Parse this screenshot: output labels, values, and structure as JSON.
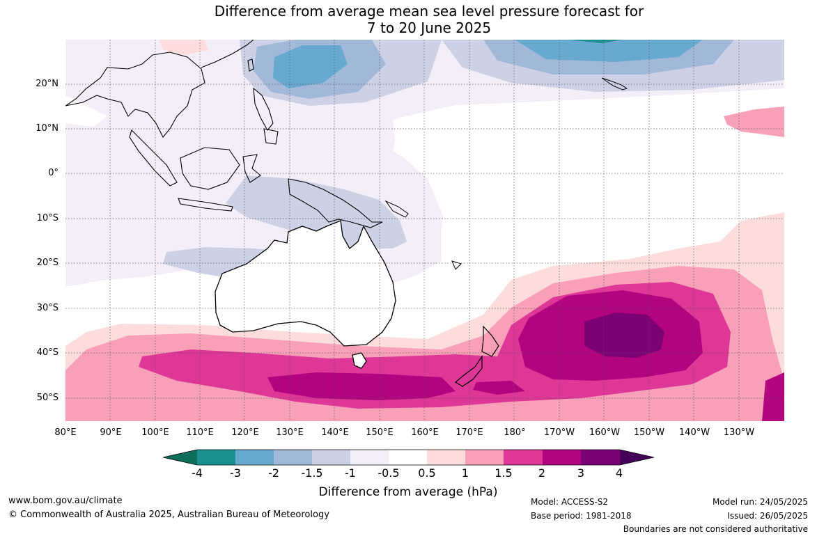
{
  "title": {
    "line1": "Difference from average mean sea level pressure forecast for",
    "line2": "7 to 20 June 2025"
  },
  "map": {
    "lat_labels": [
      "20°N",
      "10°N",
      "0°",
      "10°S",
      "20°S",
      "30°S",
      "40°S",
      "50°S"
    ],
    "lon_labels": [
      "80°E",
      "90°E",
      "100°E",
      "110°E",
      "120°E",
      "130°E",
      "140°E",
      "150°E",
      "160°E",
      "170°E",
      "180°",
      "170°W",
      "160°W",
      "150°W",
      "140°W",
      "130°W"
    ]
  },
  "colorbar": {
    "ticks": [
      "-4",
      "-3",
      "-2",
      "-1.5",
      "-1",
      "-0.5",
      "0.5",
      "1",
      "1.5",
      "2",
      "3",
      "4"
    ],
    "colors": [
      "#0f6e5b",
      "#1a9090",
      "#68a9d0",
      "#a2b8d8",
      "#ccd1e6",
      "#f3eef7",
      "#ffffff",
      "#fddcdc",
      "#f9a0b9",
      "#df3798",
      "#b2047e",
      "#7c0174",
      "#45005a"
    ],
    "label": "Difference from average (hPa)"
  },
  "footer": {
    "website": "www.bom.gov.au/climate",
    "copyright": "© Commonwealth of Australia 2025, Australian Bureau of Meteorology",
    "model": "Model: ACCESS-S2",
    "base_period": "Base period: 1981-2018",
    "model_run": "Model run: 24/05/2025",
    "issued": "Issued: 26/05/2025",
    "disclaimer": "Boundaries are not considered authoritative"
  }
}
